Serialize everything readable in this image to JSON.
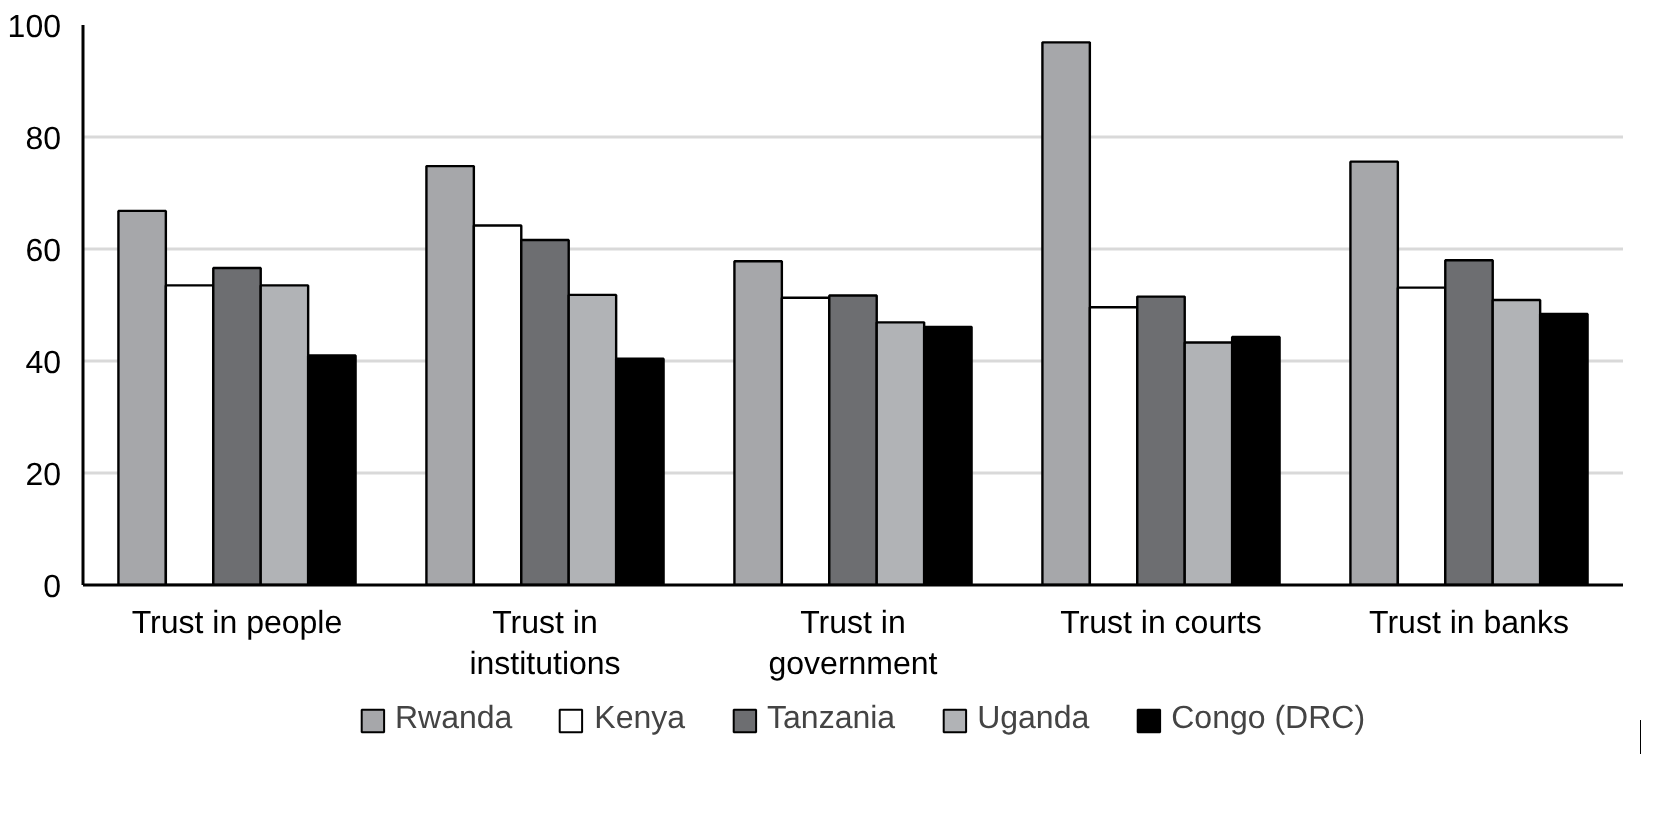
{
  "chart_data": {
    "type": "bar",
    "categories": [
      "Trust in people",
      "Trust in institutions",
      "Trust in government",
      "Trust in courts",
      "Trust in banks"
    ],
    "series": [
      {
        "name": "Rwanda",
        "color": "#a6a7aa",
        "values": [
          66.8,
          74.8,
          57.8,
          96.9,
          75.6
        ]
      },
      {
        "name": "Kenya",
        "color": "#ffffff",
        "values": [
          53.5,
          64.2,
          51.3,
          49.6,
          53.1
        ]
      },
      {
        "name": "Tanzania",
        "color": "#6d6e71",
        "values": [
          56.6,
          61.6,
          51.7,
          51.5,
          58.0
        ]
      },
      {
        "name": "Uganda",
        "color": "#b1b3b6",
        "values": [
          53.5,
          51.8,
          46.9,
          43.3,
          50.9
        ]
      },
      {
        "name": "Congo (DRC)",
        "color": "#000000",
        "values": [
          41.0,
          40.4,
          46.1,
          44.3,
          48.4
        ]
      }
    ],
    "ylim": [
      0,
      100
    ],
    "yticks": [
      0,
      20,
      40,
      60,
      80,
      100
    ],
    "grid": "y",
    "legend": "bottom"
  }
}
